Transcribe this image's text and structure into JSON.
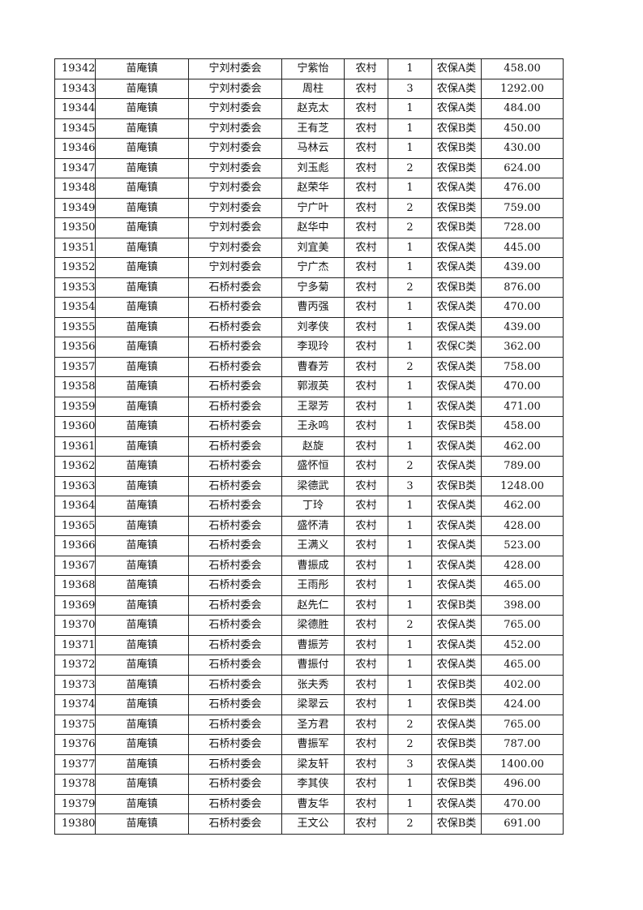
{
  "table": {
    "rows": [
      [
        "19342",
        "苗庵镇",
        "宁刘村委会",
        "宁紫怡",
        "农村",
        "1",
        "农保A类",
        "458.00"
      ],
      [
        "19343",
        "苗庵镇",
        "宁刘村委会",
        "周柱",
        "农村",
        "3",
        "农保A类",
        "1292.00"
      ],
      [
        "19344",
        "苗庵镇",
        "宁刘村委会",
        "赵克太",
        "农村",
        "1",
        "农保A类",
        "484.00"
      ],
      [
        "19345",
        "苗庵镇",
        "宁刘村委会",
        "王有芝",
        "农村",
        "1",
        "农保B类",
        "450.00"
      ],
      [
        "19346",
        "苗庵镇",
        "宁刘村委会",
        "马林云",
        "农村",
        "1",
        "农保B类",
        "430.00"
      ],
      [
        "19347",
        "苗庵镇",
        "宁刘村委会",
        "刘玉彪",
        "农村",
        "2",
        "农保B类",
        "624.00"
      ],
      [
        "19348",
        "苗庵镇",
        "宁刘村委会",
        "赵荣华",
        "农村",
        "1",
        "农保A类",
        "476.00"
      ],
      [
        "19349",
        "苗庵镇",
        "宁刘村委会",
        "宁广叶",
        "农村",
        "2",
        "农保B类",
        "759.00"
      ],
      [
        "19350",
        "苗庵镇",
        "宁刘村委会",
        "赵华中",
        "农村",
        "2",
        "农保B类",
        "728.00"
      ],
      [
        "19351",
        "苗庵镇",
        "宁刘村委会",
        "刘宜美",
        "农村",
        "1",
        "农保A类",
        "445.00"
      ],
      [
        "19352",
        "苗庵镇",
        "宁刘村委会",
        "宁广杰",
        "农村",
        "1",
        "农保A类",
        "439.00"
      ],
      [
        "19353",
        "苗庵镇",
        "石桥村委会",
        "宁多菊",
        "农村",
        "2",
        "农保B类",
        "876.00"
      ],
      [
        "19354",
        "苗庵镇",
        "石桥村委会",
        "曹丙强",
        "农村",
        "1",
        "农保A类",
        "470.00"
      ],
      [
        "19355",
        "苗庵镇",
        "石桥村委会",
        "刘孝侠",
        "农村",
        "1",
        "农保A类",
        "439.00"
      ],
      [
        "19356",
        "苗庵镇",
        "石桥村委会",
        "李现玲",
        "农村",
        "1",
        "农保C类",
        "362.00"
      ],
      [
        "19357",
        "苗庵镇",
        "石桥村委会",
        "曹春芳",
        "农村",
        "2",
        "农保A类",
        "758.00"
      ],
      [
        "19358",
        "苗庵镇",
        "石桥村委会",
        "郭淑英",
        "农村",
        "1",
        "农保A类",
        "470.00"
      ],
      [
        "19359",
        "苗庵镇",
        "石桥村委会",
        "王翠芳",
        "农村",
        "1",
        "农保A类",
        "471.00"
      ],
      [
        "19360",
        "苗庵镇",
        "石桥村委会",
        "王永鸣",
        "农村",
        "1",
        "农保B类",
        "458.00"
      ],
      [
        "19361",
        "苗庵镇",
        "石桥村委会",
        "赵旋",
        "农村",
        "1",
        "农保A类",
        "462.00"
      ],
      [
        "19362",
        "苗庵镇",
        "石桥村委会",
        "盛怀恒",
        "农村",
        "2",
        "农保A类",
        "789.00"
      ],
      [
        "19363",
        "苗庵镇",
        "石桥村委会",
        "梁德武",
        "农村",
        "3",
        "农保B类",
        "1248.00"
      ],
      [
        "19364",
        "苗庵镇",
        "石桥村委会",
        "丁玲",
        "农村",
        "1",
        "农保A类",
        "462.00"
      ],
      [
        "19365",
        "苗庵镇",
        "石桥村委会",
        "盛怀清",
        "农村",
        "1",
        "农保A类",
        "428.00"
      ],
      [
        "19366",
        "苗庵镇",
        "石桥村委会",
        "王满义",
        "农村",
        "1",
        "农保A类",
        "523.00"
      ],
      [
        "19367",
        "苗庵镇",
        "石桥村委会",
        "曹振成",
        "农村",
        "1",
        "农保A类",
        "428.00"
      ],
      [
        "19368",
        "苗庵镇",
        "石桥村委会",
        "王雨彤",
        "农村",
        "1",
        "农保A类",
        "465.00"
      ],
      [
        "19369",
        "苗庵镇",
        "石桥村委会",
        "赵先仁",
        "农村",
        "1",
        "农保B类",
        "398.00"
      ],
      [
        "19370",
        "苗庵镇",
        "石桥村委会",
        "梁德胜",
        "农村",
        "2",
        "农保A类",
        "765.00"
      ],
      [
        "19371",
        "苗庵镇",
        "石桥村委会",
        "曹振芳",
        "农村",
        "1",
        "农保A类",
        "452.00"
      ],
      [
        "19372",
        "苗庵镇",
        "石桥村委会",
        "曹振付",
        "农村",
        "1",
        "农保A类",
        "465.00"
      ],
      [
        "19373",
        "苗庵镇",
        "石桥村委会",
        "张夫秀",
        "农村",
        "1",
        "农保B类",
        "402.00"
      ],
      [
        "19374",
        "苗庵镇",
        "石桥村委会",
        "梁翠云",
        "农村",
        "1",
        "农保B类",
        "424.00"
      ],
      [
        "19375",
        "苗庵镇",
        "石桥村委会",
        "圣方君",
        "农村",
        "2",
        "农保A类",
        "765.00"
      ],
      [
        "19376",
        "苗庵镇",
        "石桥村委会",
        "曹振军",
        "农村",
        "2",
        "农保B类",
        "787.00"
      ],
      [
        "19377",
        "苗庵镇",
        "石桥村委会",
        "梁友轩",
        "农村",
        "3",
        "农保A类",
        "1400.00"
      ],
      [
        "19378",
        "苗庵镇",
        "石桥村委会",
        "李其侠",
        "农村",
        "1",
        "农保B类",
        "496.00"
      ],
      [
        "19379",
        "苗庵镇",
        "石桥村委会",
        "曹友华",
        "农村",
        "1",
        "农保A类",
        "470.00"
      ],
      [
        "19380",
        "苗庵镇",
        "石桥村委会",
        "王文公",
        "农村",
        "2",
        "农保B类",
        "691.00"
      ]
    ]
  }
}
